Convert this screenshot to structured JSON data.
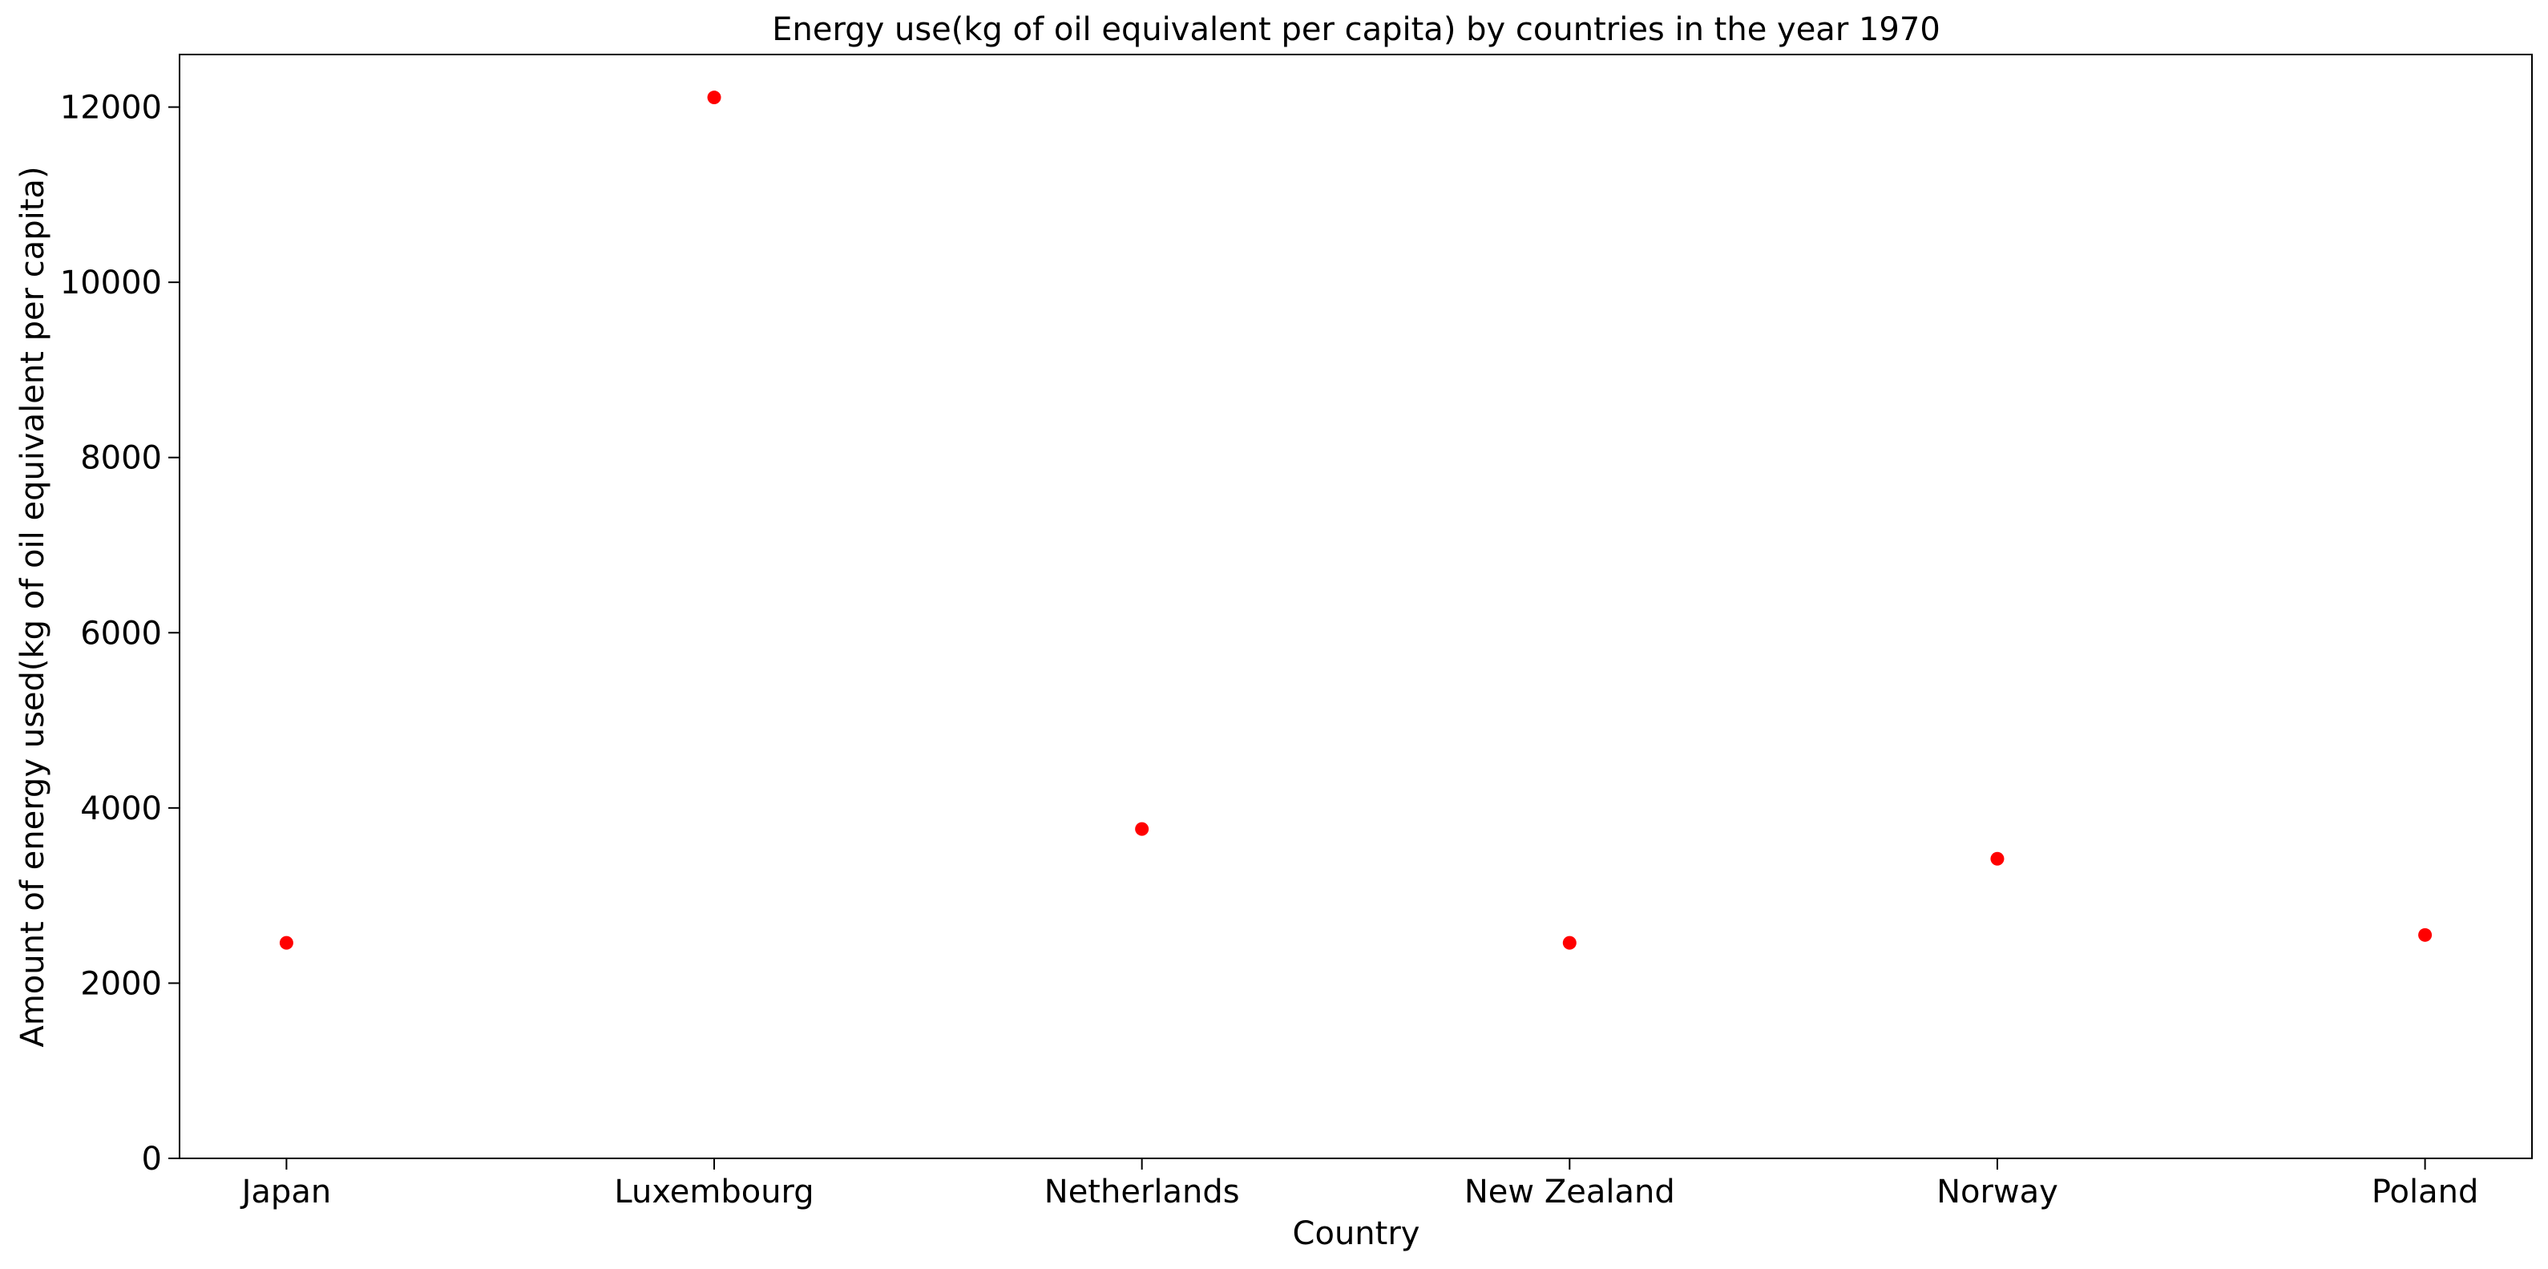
{
  "chart_data": {
    "type": "scatter",
    "title": "Energy use(kg of oil equivalent per capita) by countries in the year 1970",
    "xlabel": "Country",
    "ylabel": "Amount of energy used(kg of oil equivalent per capita)",
    "categories": [
      "Japan",
      "Luxembourg",
      "Netherlands",
      "New Zealand",
      "Norway",
      "Poland"
    ],
    "series": [
      {
        "values": [
          2460,
          12110,
          3760,
          2460,
          3420,
          2550
        ],
        "color": "#ff0000"
      }
    ],
    "ylim": [
      0,
      12600
    ],
    "yticks": [
      0,
      2000,
      4000,
      6000,
      8000,
      10000,
      12000
    ],
    "grid": false,
    "legend": "none"
  }
}
